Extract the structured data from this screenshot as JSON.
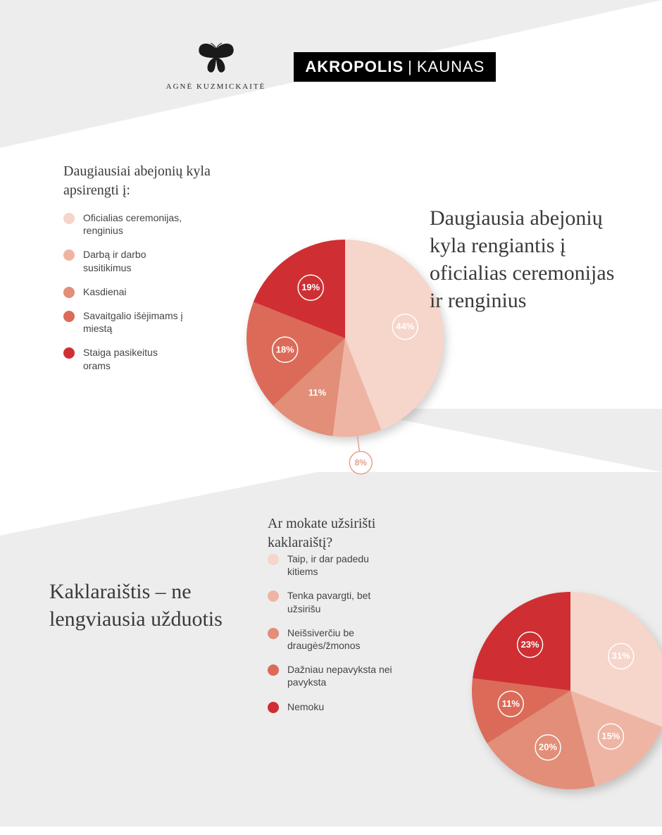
{
  "header": {
    "brand_name": "AGNĖ KUZMICKAITĖ",
    "akropolis_bold": "AKROPOLIS",
    "akropolis_city": "KAUNAS"
  },
  "chart1": {
    "type": "pie",
    "question": "Daugiausiai abejonių kyla apsirengti į:",
    "headline": "Daugiausia abejonių kyla rengiantis į oficialias ceremonijas ir renginius",
    "radius": 140,
    "background_color": "#ffffff",
    "shadow_color": "rgba(0,0,0,0.18)",
    "label_fontsize": 13,
    "label_color_on_slice": "#ffffff",
    "callout_stroke": "#e6a18f",
    "slices": [
      {
        "label": "Oficialias ceremonijas, renginius",
        "value": 44,
        "color": "#f6d5cb",
        "display_label": "44%",
        "label_style": "on_slice_ring"
      },
      {
        "label": "Darbą ir darbo susitikimus",
        "value": 8,
        "color": "#efb5a4",
        "display_label": "8%",
        "label_style": "callout"
      },
      {
        "label": "Kasdienai",
        "value": 11,
        "color": "#e28e78",
        "display_label": "11%",
        "label_style": "on_slice"
      },
      {
        "label": "Savaitgalio išėjimams į miestą",
        "value": 18,
        "color": "#db6b58",
        "display_label": "18%",
        "label_style": "on_slice_ring"
      },
      {
        "label": "Staiga pasikeitus orams",
        "value": 19,
        "color": "#cf2f33",
        "display_label": "19%",
        "label_style": "on_slice_ring"
      }
    ]
  },
  "chart2": {
    "type": "pie",
    "question": "Ar mokate užsirišti kaklaraištį?",
    "headline": "Kaklaraištis – ne lengviausia užduotis",
    "radius": 140,
    "slices": [
      {
        "label": "Taip, ir dar padedu kitiems",
        "value": 31,
        "color": "#f6d5cb",
        "display_label": "31%",
        "label_style": "on_slice_ring"
      },
      {
        "label": "Tenka pavargti, bet užsirišu",
        "value": 15,
        "color": "#efb5a4",
        "display_label": "15%",
        "label_style": "on_slice_ring"
      },
      {
        "label": "Neišsiverčiu be draugės/žmonos",
        "value": 20,
        "color": "#e28e78",
        "display_label": "20%",
        "label_style": "on_slice_ring"
      },
      {
        "label": "Dažniau nepavyksta nei pavyksta",
        "value": 11,
        "color": "#db6b58",
        "display_label": "11%",
        "label_style": "on_slice_ring"
      },
      {
        "label": "Nemoku",
        "value": 23,
        "color": "#cf2f33",
        "display_label": "23%",
        "label_style": "on_slice_ring"
      }
    ]
  }
}
